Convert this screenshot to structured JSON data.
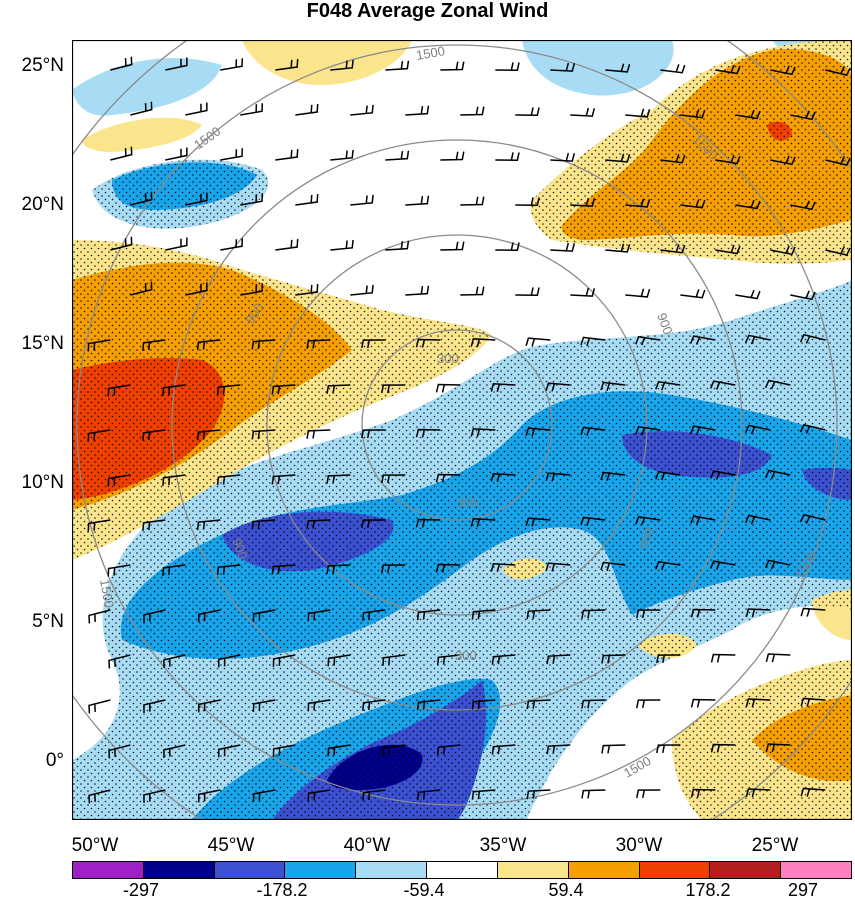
{
  "title": "F048 Average Zonal Wind",
  "lat_labels": [
    "25°N",
    "20°N",
    "15°N",
    "10°N",
    "5°N",
    "0°"
  ],
  "lon_labels": [
    "50°W",
    "45°W",
    "40°W",
    "35°W",
    "30°W",
    "25°W"
  ],
  "range_ring_labels": [
    "1500",
    "1500",
    "1500",
    "1500",
    "1500",
    "900",
    "900",
    "900",
    "900",
    "300",
    "300",
    "300",
    "1500"
  ],
  "colorbar": {
    "labels": [
      "-297",
      "-178.2",
      "-59.4",
      "59.4",
      "178.2",
      "297"
    ],
    "colors": [
      "#a020c8",
      "#00008b",
      "#3c50d2",
      "#19a5eb",
      "#a8dcf5",
      "#ffffff",
      "#fbe58c",
      "#f5a000",
      "#f04000",
      "#b41e1e",
      "#ff80c0"
    ]
  }
}
